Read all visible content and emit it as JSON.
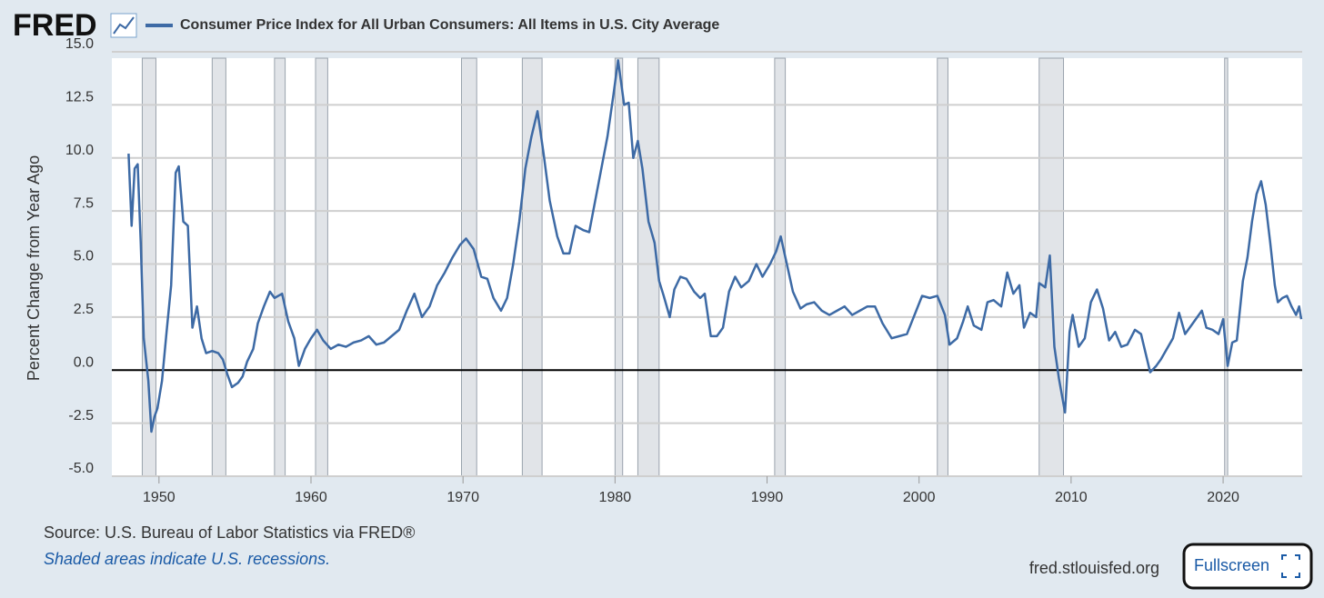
{
  "logo": "FRED",
  "chart_data": {
    "type": "line",
    "ylabel": "Percent Change from Year Ago",
    "x": [
      1948.0,
      1948.2,
      1948.4,
      1948.6,
      1948.8,
      1949.0,
      1949.3,
      1949.5,
      1949.7,
      1949.9,
      1950.2,
      1950.5,
      1950.8,
      1951.1,
      1951.3,
      1951.6,
      1951.9,
      1952.2,
      1952.5,
      1952.8,
      1953.1,
      1953.5,
      1953.9,
      1954.2,
      1954.5,
      1954.8,
      1955.2,
      1955.5,
      1955.8,
      1956.2,
      1956.5,
      1956.9,
      1957.3,
      1957.6,
      1958.1,
      1958.5,
      1958.9,
      1959.2,
      1959.6,
      1960.0,
      1960.4,
      1960.8,
      1961.3,
      1961.8,
      1962.3,
      1962.8,
      1963.3,
      1963.8,
      1964.3,
      1964.8,
      1965.3,
      1965.8,
      1966.3,
      1966.8,
      1967.3,
      1967.8,
      1968.3,
      1968.8,
      1969.3,
      1969.8,
      1970.2,
      1970.7,
      1971.2,
      1971.6,
      1972.0,
      1972.5,
      1972.9,
      1973.3,
      1973.7,
      1974.1,
      1974.5,
      1974.9,
      1975.3,
      1975.7,
      1976.2,
      1976.6,
      1977.0,
      1977.4,
      1977.9,
      1978.3,
      1978.7,
      1979.1,
      1979.5,
      1979.9,
      1980.2,
      1980.6,
      1980.9,
      1981.2,
      1981.5,
      1981.8,
      1982.2,
      1982.6,
      1982.9,
      1983.2,
      1983.6,
      1983.9,
      1984.3,
      1984.7,
      1985.2,
      1985.6,
      1985.9,
      1986.3,
      1986.7,
      1987.1,
      1987.5,
      1987.9,
      1988.3,
      1988.8,
      1989.3,
      1989.7,
      1990.2,
      1990.6,
      1990.9,
      1991.3,
      1991.7,
      1992.2,
      1992.6,
      1993.1,
      1993.6,
      1994.1,
      1994.6,
      1995.1,
      1995.6,
      1996.1,
      1996.6,
      1997.1,
      1997.6,
      1998.2,
      1998.7,
      1999.2,
      1999.7,
      2000.2,
      2000.7,
      2001.2,
      2001.7,
      2002.0,
      2002.5,
      2002.9,
      2003.2,
      2003.6,
      2004.1,
      2004.5,
      2004.9,
      2005.4,
      2005.8,
      2006.2,
      2006.6,
      2006.9,
      2007.3,
      2007.7,
      2007.9,
      2008.3,
      2008.6,
      2008.9,
      2009.2,
      2009.6,
      2009.9,
      2010.1,
      2010.5,
      2010.9,
      2011.3,
      2011.7,
      2012.1,
      2012.5,
      2012.9,
      2013.3,
      2013.7,
      2014.2,
      2014.6,
      2014.9,
      2015.2,
      2015.6,
      2015.9,
      2016.3,
      2016.7,
      2017.1,
      2017.5,
      2017.9,
      2018.3,
      2018.6,
      2018.9,
      2019.3,
      2019.7,
      2020.0,
      2020.3,
      2020.6,
      2020.9,
      2021.3,
      2021.6,
      2021.9,
      2022.2,
      2022.5,
      2022.8,
      2023.1,
      2023.4,
      2023.6,
      2023.9,
      2024.2,
      2024.5,
      2024.8,
      2025.0,
      2025.14
    ],
    "series": [
      {
        "name": "Consumer Price Index for All Urban Consumers: All Items in U.S. City Average",
        "color": "#3d6aa5",
        "values": [
          10.2,
          6.8,
          9.5,
          9.7,
          6.0,
          1.5,
          -0.5,
          -2.9,
          -2.2,
          -1.8,
          -0.5,
          1.8,
          4.0,
          9.3,
          9.6,
          7.0,
          6.8,
          2.0,
          3.0,
          1.5,
          0.8,
          0.9,
          0.8,
          0.5,
          -0.2,
          -0.8,
          -0.6,
          -0.3,
          0.4,
          1.0,
          2.2,
          3.0,
          3.7,
          3.4,
          3.6,
          2.3,
          1.5,
          0.2,
          1.0,
          1.5,
          1.9,
          1.4,
          1.0,
          1.2,
          1.1,
          1.3,
          1.4,
          1.6,
          1.2,
          1.3,
          1.6,
          1.9,
          2.8,
          3.6,
          2.5,
          3.0,
          4.0,
          4.6,
          5.3,
          5.9,
          6.2,
          5.7,
          4.4,
          4.3,
          3.4,
          2.8,
          3.4,
          5.0,
          7.0,
          9.5,
          11.0,
          12.2,
          10.2,
          8.0,
          6.3,
          5.5,
          5.5,
          6.8,
          6.6,
          6.5,
          8.0,
          9.5,
          11.0,
          13.0,
          14.6,
          12.5,
          12.6,
          10.0,
          10.8,
          9.5,
          7.0,
          6.0,
          4.2,
          3.5,
          2.5,
          3.8,
          4.4,
          4.3,
          3.7,
          3.4,
          3.6,
          1.6,
          1.6,
          2.0,
          3.7,
          4.4,
          3.9,
          4.2,
          5.0,
          4.4,
          5.0,
          5.6,
          6.3,
          5.0,
          3.7,
          2.9,
          3.1,
          3.2,
          2.8,
          2.6,
          2.8,
          3.0,
          2.6,
          2.8,
          3.0,
          3.0,
          2.2,
          1.5,
          1.6,
          1.7,
          2.6,
          3.5,
          3.4,
          3.5,
          2.6,
          1.2,
          1.5,
          2.3,
          3.0,
          2.1,
          1.9,
          3.2,
          3.3,
          3.0,
          4.6,
          3.6,
          4.0,
          2.0,
          2.7,
          2.5,
          4.1,
          3.9,
          5.4,
          1.1,
          -0.4,
          -2.0,
          1.8,
          2.6,
          1.1,
          1.5,
          3.2,
          3.8,
          2.9,
          1.4,
          1.8,
          1.1,
          1.2,
          1.9,
          1.7,
          0.8,
          -0.1,
          0.2,
          0.5,
          1.0,
          1.5,
          2.7,
          1.7,
          2.1,
          2.5,
          2.8,
          2.0,
          1.9,
          1.7,
          2.4,
          0.2,
          1.3,
          1.4,
          4.2,
          5.3,
          7.0,
          8.3,
          8.9,
          7.8,
          6.0,
          4.0,
          3.2,
          3.4,
          3.5,
          3.0,
          2.6,
          3.0,
          2.4
        ]
      }
    ],
    "recessions": [
      [
        1948.9,
        1949.8
      ],
      [
        1953.5,
        1954.4
      ],
      [
        1957.6,
        1958.3
      ],
      [
        1960.3,
        1961.1
      ],
      [
        1969.9,
        1970.9
      ],
      [
        1973.9,
        1975.2
      ],
      [
        1980.0,
        1980.5
      ],
      [
        1981.5,
        1982.9
      ],
      [
        1990.5,
        1991.2
      ],
      [
        2001.2,
        2001.9
      ],
      [
        2007.9,
        2009.5
      ],
      [
        2020.1,
        2020.3
      ]
    ],
    "recession_color": "#e1e4e8",
    "xlim": [
      1946.9,
      2025.2
    ],
    "xticks": [
      1950,
      1960,
      1970,
      1980,
      1990,
      2000,
      2010,
      2020
    ],
    "ylim": [
      -5,
      15
    ],
    "yticks": [
      {
        "value": 15,
        "label": "15.0"
      },
      {
        "value": 12.5,
        "label": "12.5"
      },
      {
        "value": 10,
        "label": "10.0"
      },
      {
        "value": 7.5,
        "label": "7.5"
      },
      {
        "value": 5,
        "label": "5.0"
      },
      {
        "value": 2.5,
        "label": "2.5"
      },
      {
        "value": 0,
        "label": "0.0"
      },
      {
        "value": -2.5,
        "label": "-2.5"
      },
      {
        "value": -5,
        "label": "-5.0"
      }
    ],
    "grid": true,
    "source": "Source: U.S. Bureau of Labor Statistics via FRED®",
    "note": "Shaded areas indicate U.S. recessions."
  },
  "site": "fred.stlouisfed.org",
  "button": "Fullscreen"
}
